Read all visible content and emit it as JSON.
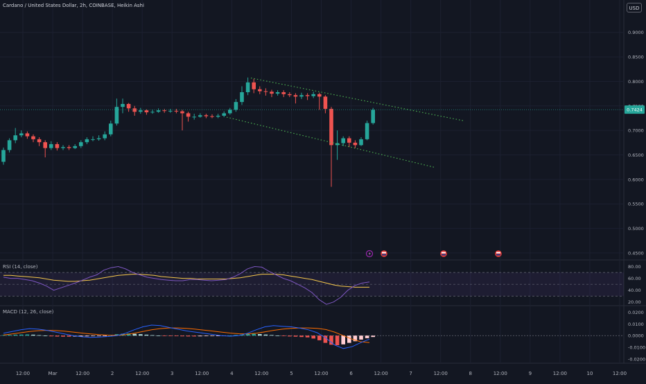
{
  "header": {
    "title": "Cardano / United States Dollar, 2h, COINBASE, Heikin Ashi",
    "currency": "USD"
  },
  "price_badge": "0.7424",
  "panes": {
    "rsi_label": "RSI (14, close)",
    "macd_label": "MACD (12, 26, close)"
  },
  "colors": {
    "up": "#26a69a",
    "down": "#ef5350",
    "trendline": "#4caf50",
    "rsi_line": "#7e57c2",
    "rsi_ma": "#f7c94b",
    "macd_line": "#2962ff",
    "signal_line": "#ff6d00"
  },
  "chart_data": [
    {
      "type": "candlestick",
      "title": "Cardano / United States Dollar, 2h, COINBASE, Heikin Ashi",
      "y_ticks": [
        "0.9000",
        "0.8500",
        "0.8000",
        "0.7500",
        "0.7000",
        "0.6500",
        "0.6000",
        "0.5500",
        "0.5000",
        "0.4500"
      ],
      "x_ticks": [
        "12:00",
        "Mar",
        "12:00",
        "2",
        "12:00",
        "3",
        "12:00",
        "4",
        "12:00",
        "5",
        "12:00",
        "6",
        "12:00",
        "7",
        "12:00",
        "8",
        "12:00",
        "9",
        "12:00",
        "10",
        "12:00"
      ],
      "ylim": [
        0.44,
        0.935
      ],
      "last_price": 0.7424,
      "candles": [
        [
          0.636,
          0.66,
          0.63,
          0.665
        ],
        [
          0.66,
          0.68,
          0.655,
          0.684
        ],
        [
          0.68,
          0.69,
          0.674,
          0.705
        ],
        [
          0.69,
          0.694,
          0.686,
          0.7
        ],
        [
          0.694,
          0.688,
          0.683,
          0.698
        ],
        [
          0.688,
          0.682,
          0.676,
          0.692
        ],
        [
          0.682,
          0.676,
          0.668,
          0.686
        ],
        [
          0.676,
          0.664,
          0.645,
          0.68
        ],
        [
          0.664,
          0.672,
          0.66,
          0.678
        ],
        [
          0.672,
          0.664,
          0.659,
          0.676
        ],
        [
          0.664,
          0.666,
          0.66,
          0.67
        ],
        [
          0.666,
          0.664,
          0.66,
          0.67
        ],
        [
          0.664,
          0.668,
          0.662,
          0.672
        ],
        [
          0.668,
          0.676,
          0.664,
          0.68
        ],
        [
          0.676,
          0.682,
          0.672,
          0.686
        ],
        [
          0.682,
          0.682,
          0.678,
          0.688
        ],
        [
          0.682,
          0.684,
          0.679,
          0.69
        ],
        [
          0.684,
          0.692,
          0.68,
          0.698
        ],
        [
          0.692,
          0.714,
          0.688,
          0.72
        ],
        [
          0.714,
          0.748,
          0.71,
          0.765
        ],
        [
          0.748,
          0.754,
          0.735,
          0.765
        ],
        [
          0.754,
          0.745,
          0.738,
          0.756
        ],
        [
          0.745,
          0.738,
          0.73,
          0.75
        ],
        [
          0.738,
          0.741,
          0.734,
          0.746
        ],
        [
          0.741,
          0.737,
          0.732,
          0.743
        ],
        [
          0.737,
          0.738,
          0.734,
          0.742
        ],
        [
          0.738,
          0.741,
          0.736,
          0.745
        ],
        [
          0.741,
          0.74,
          0.736,
          0.744
        ],
        [
          0.74,
          0.74,
          0.736,
          0.744
        ],
        [
          0.74,
          0.739,
          0.735,
          0.744
        ],
        [
          0.739,
          0.735,
          0.7,
          0.742
        ],
        [
          0.735,
          0.728,
          0.718,
          0.738
        ],
        [
          0.728,
          0.728,
          0.722,
          0.734
        ],
        [
          0.728,
          0.731,
          0.726,
          0.735
        ],
        [
          0.731,
          0.729,
          0.725,
          0.734
        ],
        [
          0.729,
          0.728,
          0.725,
          0.733
        ],
        [
          0.728,
          0.73,
          0.725,
          0.734
        ],
        [
          0.73,
          0.735,
          0.727,
          0.739
        ],
        [
          0.735,
          0.742,
          0.732,
          0.746
        ],
        [
          0.742,
          0.758,
          0.738,
          0.764
        ],
        [
          0.758,
          0.778,
          0.752,
          0.79
        ],
        [
          0.778,
          0.798,
          0.772,
          0.808
        ],
        [
          0.798,
          0.784,
          0.776,
          0.805
        ],
        [
          0.784,
          0.78,
          0.774,
          0.79
        ],
        [
          0.78,
          0.779,
          0.771,
          0.786
        ],
        [
          0.779,
          0.775,
          0.768,
          0.783
        ],
        [
          0.775,
          0.778,
          0.771,
          0.782
        ],
        [
          0.778,
          0.774,
          0.768,
          0.782
        ],
        [
          0.774,
          0.772,
          0.768,
          0.778
        ],
        [
          0.772,
          0.769,
          0.755,
          0.776
        ],
        [
          0.769,
          0.772,
          0.764,
          0.777
        ],
        [
          0.772,
          0.77,
          0.762,
          0.776
        ],
        [
          0.77,
          0.774,
          0.766,
          0.779
        ],
        [
          0.774,
          0.769,
          0.742,
          0.777
        ],
        [
          0.769,
          0.744,
          0.735,
          0.772
        ],
        [
          0.744,
          0.67,
          0.585,
          0.748
        ],
        [
          0.67,
          0.674,
          0.64,
          0.7
        ],
        [
          0.674,
          0.684,
          0.668,
          0.688
        ],
        [
          0.684,
          0.675,
          0.666,
          0.688
        ],
        [
          0.675,
          0.67,
          0.664,
          0.68
        ],
        [
          0.67,
          0.682,
          0.668,
          0.686
        ],
        [
          0.682,
          0.715,
          0.68,
          0.72
        ],
        [
          0.715,
          0.742,
          0.712,
          0.746
        ]
      ]
    },
    {
      "type": "line",
      "title": "RSI (14, close)",
      "y_ticks": [
        "80.00",
        "60.00",
        "40.00",
        "20.00"
      ],
      "ylim": [
        15,
        90
      ],
      "bands": [
        30,
        70
      ],
      "series": [
        {
          "name": "RSI",
          "values": [
            62,
            60,
            60,
            58,
            56,
            52,
            47,
            40,
            44,
            48,
            52,
            57,
            62,
            66,
            74,
            78,
            80,
            76,
            70,
            66,
            62,
            60,
            58,
            57,
            56,
            56,
            58,
            58,
            57,
            56,
            57,
            58,
            62,
            68,
            76,
            80,
            79,
            72,
            66,
            60,
            56,
            50,
            44,
            36,
            24,
            16,
            20,
            28,
            40,
            48,
            52,
            54
          ]
        },
        {
          "name": "RSI MA",
          "values": [
            65,
            65,
            64,
            63,
            62,
            61,
            59,
            57,
            56,
            55,
            55,
            56,
            57,
            59,
            61,
            63,
            65,
            66,
            67,
            67,
            66,
            65,
            63,
            62,
            61,
            60,
            60,
            59,
            59,
            59,
            59,
            59,
            60,
            61,
            63,
            65,
            67,
            67,
            67,
            66,
            64,
            62,
            60,
            58,
            55,
            52,
            49,
            47,
            46,
            45,
            45,
            45
          ]
        }
      ]
    },
    {
      "type": "bar",
      "title": "MACD (12, 26, close)",
      "y_ticks": [
        "0.0200",
        "0.0100",
        "0.0000",
        "-0.0100",
        "-0.0200"
      ],
      "ylim": [
        -0.023,
        0.025
      ],
      "series": [
        {
          "name": "Histogram",
          "values": [
            0.0004,
            0.0006,
            0.0008,
            0.0009,
            0.001,
            0.0008,
            0.0004,
            0.0,
            -0.0006,
            -0.0008,
            -0.0009,
            -0.0009,
            -0.0008,
            -0.0007,
            -0.0006,
            -0.0005,
            -0.0003,
            -0.0001,
            0.0005,
            0.0012,
            0.0016,
            0.0018,
            0.0015,
            0.0012,
            0.0008,
            0.0004,
            0.0001,
            -0.0002,
            -0.0004,
            -0.0005,
            -0.0006,
            -0.0007,
            -0.0007,
            -0.0006,
            -0.0005,
            -0.0004,
            -0.0003,
            -0.0002,
            0.0001,
            0.0005,
            0.0009,
            0.0013,
            0.0015,
            0.0013,
            0.0009,
            0.0005,
            0.0001,
            -0.0004,
            -0.0007,
            -0.0009,
            -0.0012,
            -0.0015,
            -0.0025,
            -0.004,
            -0.0062,
            -0.0078,
            -0.0082,
            -0.0075,
            -0.0062,
            -0.0048,
            -0.0034,
            -0.0022,
            -0.0012
          ]
        },
        {
          "name": "MACD",
          "values": [
            0.002,
            0.0035,
            0.005,
            0.006,
            0.0055,
            0.0045,
            0.003,
            0.0015,
            0.0,
            -0.001,
            -0.0015,
            -0.0012,
            -0.0008,
            0.0,
            0.002,
            0.005,
            0.0075,
            0.009,
            0.0085,
            0.007,
            0.0055,
            0.004,
            0.003,
            0.002,
            0.001,
            0.0,
            -0.0005,
            0.0,
            0.002,
            0.005,
            0.0075,
            0.0085,
            0.008,
            0.0075,
            0.0065,
            0.005,
            0.0025,
            -0.002,
            -0.008,
            -0.011,
            -0.0095,
            -0.006,
            -0.003
          ]
        },
        {
          "name": "Signal",
          "values": [
            0.0005,
            0.0015,
            0.0025,
            0.0035,
            0.0042,
            0.0045,
            0.0043,
            0.0038,
            0.003,
            0.0022,
            0.0015,
            0.0008,
            0.0004,
            0.0003,
            0.0008,
            0.002,
            0.0035,
            0.005,
            0.006,
            0.0066,
            0.0066,
            0.0062,
            0.0055,
            0.0047,
            0.0039,
            0.003,
            0.0022,
            0.0016,
            0.0015,
            0.002,
            0.0032,
            0.0045,
            0.0055,
            0.0062,
            0.0066,
            0.0066,
            0.0062,
            0.0052,
            0.003,
            0.0,
            -0.003,
            -0.0052,
            -0.006
          ]
        }
      ]
    }
  ]
}
